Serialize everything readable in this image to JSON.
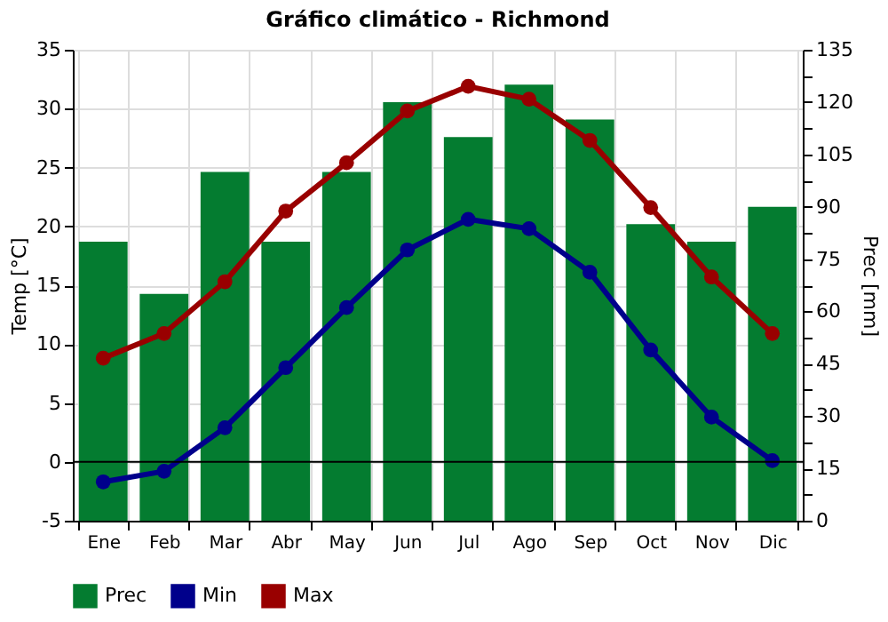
{
  "chart_data": {
    "type": "bar",
    "title": "Gráfico climático - Richmond",
    "ylabel": "Temp [°C]",
    "y2label": "Prec [mm]",
    "categories": [
      "Ene",
      "Feb",
      "Mar",
      "Abr",
      "May",
      "Jun",
      "Jul",
      "Ago",
      "Sep",
      "Oct",
      "Nov",
      "Dic"
    ],
    "series": [
      {
        "name": "Prec",
        "color": "#047c30",
        "axis": "y2",
        "values": [
          80,
          65,
          100,
          80,
          100,
          120,
          110,
          125,
          115,
          85,
          80,
          90
        ]
      },
      {
        "name": "Min",
        "color": "#00008b",
        "type": "line",
        "values": [
          -1.7,
          -0.8,
          2.9,
          8.0,
          13.1,
          18.0,
          20.6,
          19.8,
          16.1,
          9.5,
          3.8,
          0.1
        ]
      },
      {
        "name": "Max",
        "color": "#990000",
        "type": "line",
        "values": [
          8.8,
          10.9,
          15.3,
          21.3,
          25.4,
          29.8,
          31.9,
          30.8,
          27.3,
          21.6,
          15.7,
          10.9
        ]
      }
    ],
    "ylim": [
      -5,
      35
    ],
    "yticks": [
      -5,
      0,
      5,
      10,
      15,
      20,
      25,
      30,
      35
    ],
    "y2lim": [
      0,
      135
    ],
    "y2ticks": [
      0,
      {
        "value": 7.5,
        "label": null
      },
      15,
      {
        "value": 22.5,
        "label": null
      },
      30,
      {
        "value": 37.5,
        "label": null
      },
      45,
      {
        "value": 52.5,
        "label": null
      },
      60,
      {
        "value": 67.5,
        "label": null
      },
      75,
      {
        "value": 82.5,
        "label": null
      },
      90,
      {
        "value": 97.5,
        "label": null
      },
      105,
      {
        "value": 112.5,
        "label": null
      },
      120,
      {
        "value": 127.5,
        "label": null
      },
      135
    ],
    "ref_lines": [
      {
        "axis": "y",
        "value": 0,
        "color": "#000000"
      }
    ],
    "grid": true,
    "legend": "bottom",
    "marker": "circle",
    "line_style": "solid"
  }
}
